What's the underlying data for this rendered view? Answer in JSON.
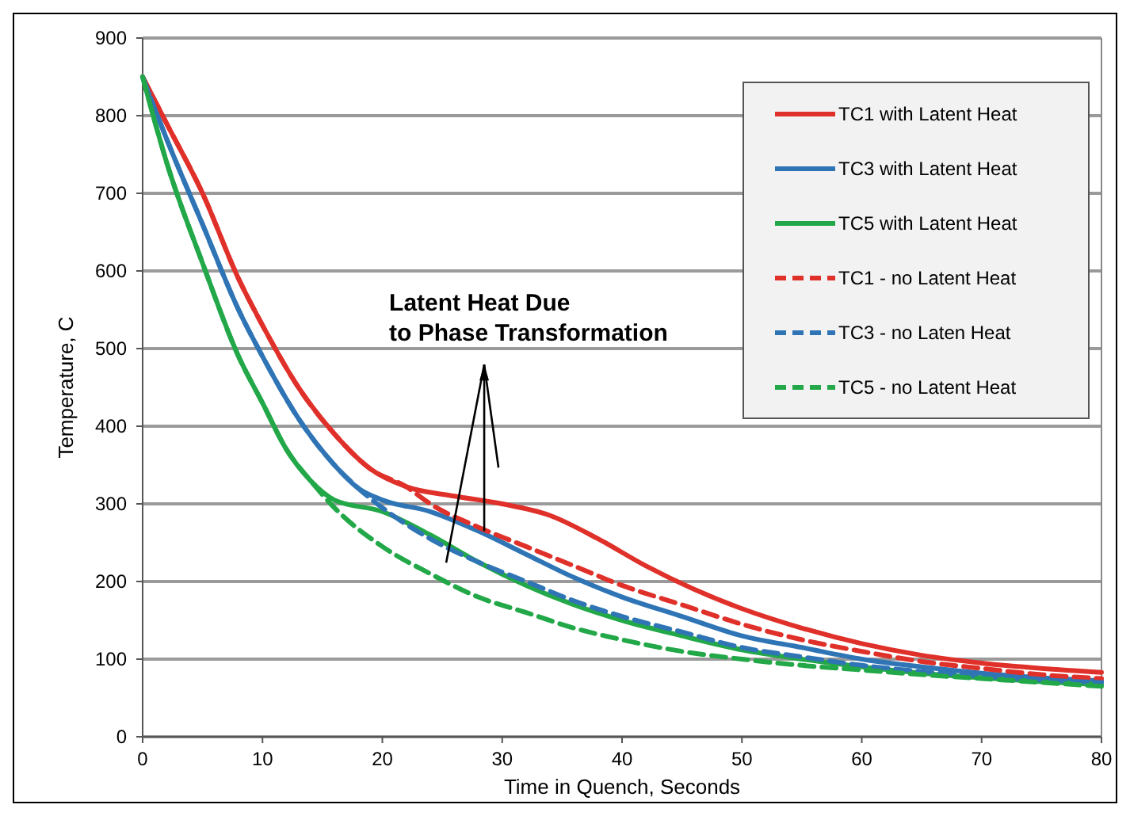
{
  "chart_data": {
    "type": "line",
    "xlabel": "Time in Quench, Seconds",
    "ylabel": "Temperature, C",
    "xlim": [
      0,
      80
    ],
    "ylim": [
      0,
      900
    ],
    "xticks": [
      0,
      10,
      20,
      30,
      40,
      50,
      60,
      70,
      80
    ],
    "yticks": [
      0,
      100,
      200,
      300,
      400,
      500,
      600,
      700,
      800,
      900
    ],
    "grid": "y",
    "legend": "top right",
    "marker": "none",
    "annotations": [
      {
        "text": "Latent Heat Due to Phase Transformation",
        "x": 28.5,
        "y": 265
      }
    ],
    "series": [
      {
        "name": "TC1 with Latent Heat",
        "color": "#e0302a",
        "line_style": "solid",
        "x": [
          0,
          2,
          5,
          8,
          10,
          13,
          16,
          19,
          22,
          26,
          30,
          34,
          38,
          42,
          46,
          50,
          55,
          60,
          65,
          70,
          75,
          80
        ],
        "values": [
          850,
          790,
          700,
          590,
          530,
          450,
          390,
          345,
          322,
          310,
          300,
          285,
          255,
          220,
          190,
          165,
          140,
          120,
          105,
          95,
          88,
          83
        ]
      },
      {
        "name": "TC3 with Latent Heat",
        "color": "#2f75b5",
        "line_style": "solid",
        "x": [
          0,
          2,
          5,
          8,
          10,
          13,
          16,
          18,
          20,
          24,
          28,
          32,
          36,
          40,
          45,
          50,
          55,
          60,
          65,
          70,
          75,
          80
        ],
        "values": [
          850,
          770,
          660,
          550,
          490,
          410,
          350,
          320,
          305,
          290,
          265,
          235,
          205,
          180,
          155,
          130,
          115,
          100,
          90,
          82,
          76,
          72
        ]
      },
      {
        "name": "TC5 with Latent Heat",
        "color": "#22a848",
        "line_style": "solid",
        "x": [
          0,
          2,
          5,
          8,
          10,
          12,
          14,
          16,
          20,
          24,
          28,
          32,
          36,
          40,
          45,
          50,
          55,
          60,
          65,
          70,
          75,
          80
        ],
        "values": [
          850,
          740,
          610,
          490,
          430,
          370,
          330,
          305,
          290,
          260,
          225,
          195,
          170,
          150,
          130,
          112,
          100,
          90,
          82,
          76,
          71,
          67
        ]
      },
      {
        "name": "TC1 - no Latent Heat",
        "color": "#e0302a",
        "line_style": "dashed",
        "x": [
          0,
          2,
          5,
          8,
          10,
          13,
          16,
          19,
          22,
          24,
          28,
          32,
          36,
          40,
          45,
          50,
          55,
          60,
          65,
          70,
          75,
          80
        ],
        "values": [
          850,
          790,
          700,
          590,
          530,
          450,
          390,
          345,
          322,
          300,
          270,
          245,
          220,
          195,
          170,
          145,
          125,
          110,
          97,
          88,
          80,
          75
        ]
      },
      {
        "name": "TC3 - no Laten Heat",
        "color": "#2f75b5",
        "line_style": "dashed",
        "x": [
          0,
          2,
          5,
          8,
          10,
          13,
          16,
          18,
          20,
          24,
          28,
          32,
          36,
          40,
          45,
          50,
          55,
          60,
          65,
          70,
          75,
          80
        ],
        "values": [
          850,
          770,
          660,
          550,
          490,
          410,
          350,
          320,
          295,
          255,
          225,
          200,
          175,
          155,
          135,
          115,
          103,
          92,
          84,
          78,
          73,
          70
        ]
      },
      {
        "name": "TC5 - no Latent Heat",
        "color": "#22a848",
        "line_style": "dashed",
        "x": [
          0,
          2,
          5,
          8,
          10,
          12,
          14,
          16,
          20,
          24,
          28,
          32,
          36,
          40,
          45,
          50,
          55,
          60,
          65,
          70,
          75,
          80
        ],
        "values": [
          850,
          740,
          610,
          490,
          430,
          370,
          330,
          295,
          245,
          210,
          180,
          160,
          140,
          125,
          110,
          100,
          92,
          86,
          80,
          75,
          70,
          65
        ]
      }
    ]
  }
}
